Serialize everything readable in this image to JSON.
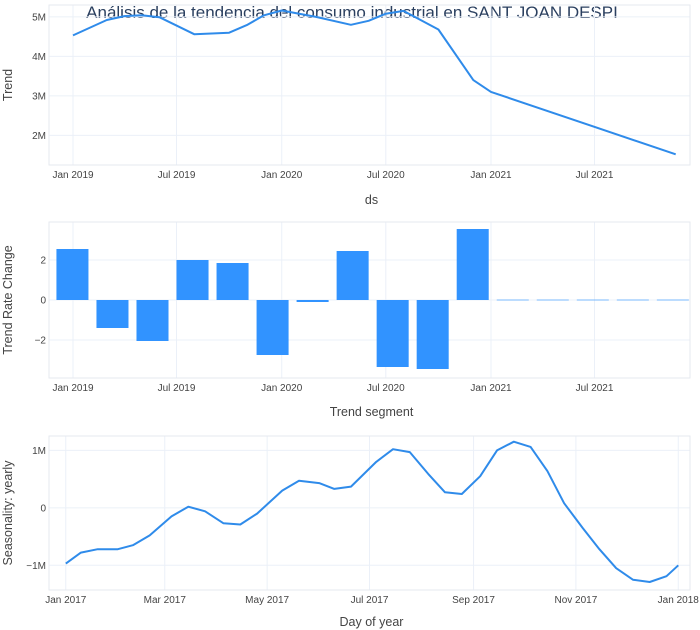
{
  "title": "Análisis de la tendencia del consumo industrial en SANT JOAN DESPI",
  "colors": {
    "line": "#2f8bea",
    "bar": "#3193ff",
    "grid": "#ebf0f8",
    "text": "#444444",
    "title": "#2a3f5f"
  },
  "chart_data": [
    {
      "type": "line",
      "name": "trend",
      "xlabel": "ds",
      "ylabel": "Trend",
      "xlim": [
        "2018-11-20",
        "2021-12-15"
      ],
      "ylim": [
        1250000,
        5300000
      ],
      "xticks": [
        {
          "x": "2019-01-01",
          "label": "Jan 2019"
        },
        {
          "x": "2019-07-01",
          "label": "Jul 2019"
        },
        {
          "x": "2020-01-01",
          "label": "Jan 2020"
        },
        {
          "x": "2020-07-01",
          "label": "Jul 2020"
        },
        {
          "x": "2021-01-01",
          "label": "Jan 2021"
        },
        {
          "x": "2021-07-01",
          "label": "Jul 2021"
        }
      ],
      "yticks": [
        {
          "y": 2000000,
          "label": "2M"
        },
        {
          "y": 3000000,
          "label": "3M"
        },
        {
          "y": 4000000,
          "label": "4M"
        },
        {
          "y": 5000000,
          "label": "5M"
        }
      ],
      "x": [
        "2019-01-01",
        "2019-03-01",
        "2019-04-01",
        "2019-05-01",
        "2019-06-01",
        "2019-08-01",
        "2019-10-01",
        "2019-11-01",
        "2019-12-01",
        "2020-01-01",
        "2020-03-01",
        "2020-05-01",
        "2020-06-01",
        "2020-07-01",
        "2020-08-01",
        "2020-10-01",
        "2020-12-01",
        "2021-01-01",
        "2021-11-20"
      ],
      "y": [
        4530000,
        4920000,
        5020000,
        5040000,
        4990000,
        4560000,
        4600000,
        4790000,
        5040000,
        5160000,
        5000000,
        4800000,
        4900000,
        5080000,
        5150000,
        4680000,
        3400000,
        3100000,
        1520000
      ]
    },
    {
      "type": "bar",
      "name": "trend_rate_change",
      "xlabel": "Trend segment",
      "ylabel": "Trend Rate Change",
      "xlim": [
        "2018-11-20",
        "2021-12-15"
      ],
      "ylim": [
        -3.9,
        3.9
      ],
      "xticks": [
        {
          "x": "2019-01-01",
          "label": "Jan 2019"
        },
        {
          "x": "2019-07-01",
          "label": "Jul 2019"
        },
        {
          "x": "2020-01-01",
          "label": "Jan 2020"
        },
        {
          "x": "2020-07-01",
          "label": "Jul 2020"
        },
        {
          "x": "2021-01-01",
          "label": "Jan 2021"
        },
        {
          "x": "2021-07-01",
          "label": "Jul 2021"
        }
      ],
      "yticks": [
        {
          "y": -2,
          "label": "−2"
        },
        {
          "y": 0,
          "label": "0"
        },
        {
          "y": 2,
          "label": "2"
        }
      ],
      "x": [
        "2018-12-31",
        "2019-03-11",
        "2019-05-20",
        "2019-07-29",
        "2019-10-07",
        "2019-12-16",
        "2020-02-24",
        "2020-05-04",
        "2020-07-13",
        "2020-09-21",
        "2020-11-30",
        "2021-02-08",
        "2021-04-19",
        "2021-06-28",
        "2021-09-06",
        "2021-11-15"
      ],
      "values": [
        2.55,
        -1.4,
        -2.05,
        2.0,
        1.85,
        -2.75,
        -0.1,
        2.45,
        -3.35,
        -3.45,
        3.55,
        0,
        0,
        0,
        0,
        0
      ]
    },
    {
      "type": "line",
      "name": "seasonality_yearly",
      "xlabel": "Day of year",
      "ylabel": "Seasonality: yearly",
      "xlim": [
        "2016-12-22",
        "2018-01-08"
      ],
      "ylim": [
        -1430000,
        1250000
      ],
      "xticks": [
        {
          "x": "2017-01-01",
          "label": "Jan 2017"
        },
        {
          "x": "2017-03-01",
          "label": "Mar 2017"
        },
        {
          "x": "2017-05-01",
          "label": "May 2017"
        },
        {
          "x": "2017-07-01",
          "label": "Jul 2017"
        },
        {
          "x": "2017-09-01",
          "label": "Sep 2017"
        },
        {
          "x": "2017-11-01",
          "label": "Nov 2017"
        },
        {
          "x": "2018-01-01",
          "label": "Jan 2018"
        }
      ],
      "yticks": [
        {
          "y": -1000000,
          "label": "−1M"
        },
        {
          "y": 0,
          "label": "0"
        },
        {
          "y": 1000000,
          "label": "1M"
        }
      ],
      "x": [
        "2017-01-01",
        "2017-01-10",
        "2017-01-20",
        "2017-02-01",
        "2017-02-10",
        "2017-02-20",
        "2017-03-05",
        "2017-03-15",
        "2017-03-25",
        "2017-04-05",
        "2017-04-15",
        "2017-04-25",
        "2017-05-10",
        "2017-05-20",
        "2017-06-01",
        "2017-06-10",
        "2017-06-20",
        "2017-07-05",
        "2017-07-15",
        "2017-07-25",
        "2017-08-05",
        "2017-08-15",
        "2017-08-25",
        "2017-09-05",
        "2017-09-15",
        "2017-09-25",
        "2017-10-05",
        "2017-10-15",
        "2017-10-25",
        "2017-11-05",
        "2017-11-15",
        "2017-11-25",
        "2017-12-05",
        "2017-12-15",
        "2017-12-25",
        "2018-01-01"
      ],
      "y": [
        -970000,
        -780000,
        -720000,
        -720000,
        -650000,
        -480000,
        -150000,
        20000,
        -60000,
        -270000,
        -290000,
        -100000,
        300000,
        470000,
        430000,
        330000,
        370000,
        800000,
        1020000,
        970000,
        590000,
        270000,
        240000,
        550000,
        1000000,
        1150000,
        1060000,
        640000,
        80000,
        -350000,
        -720000,
        -1050000,
        -1250000,
        -1290000,
        -1190000,
        -1000000
      ]
    }
  ]
}
